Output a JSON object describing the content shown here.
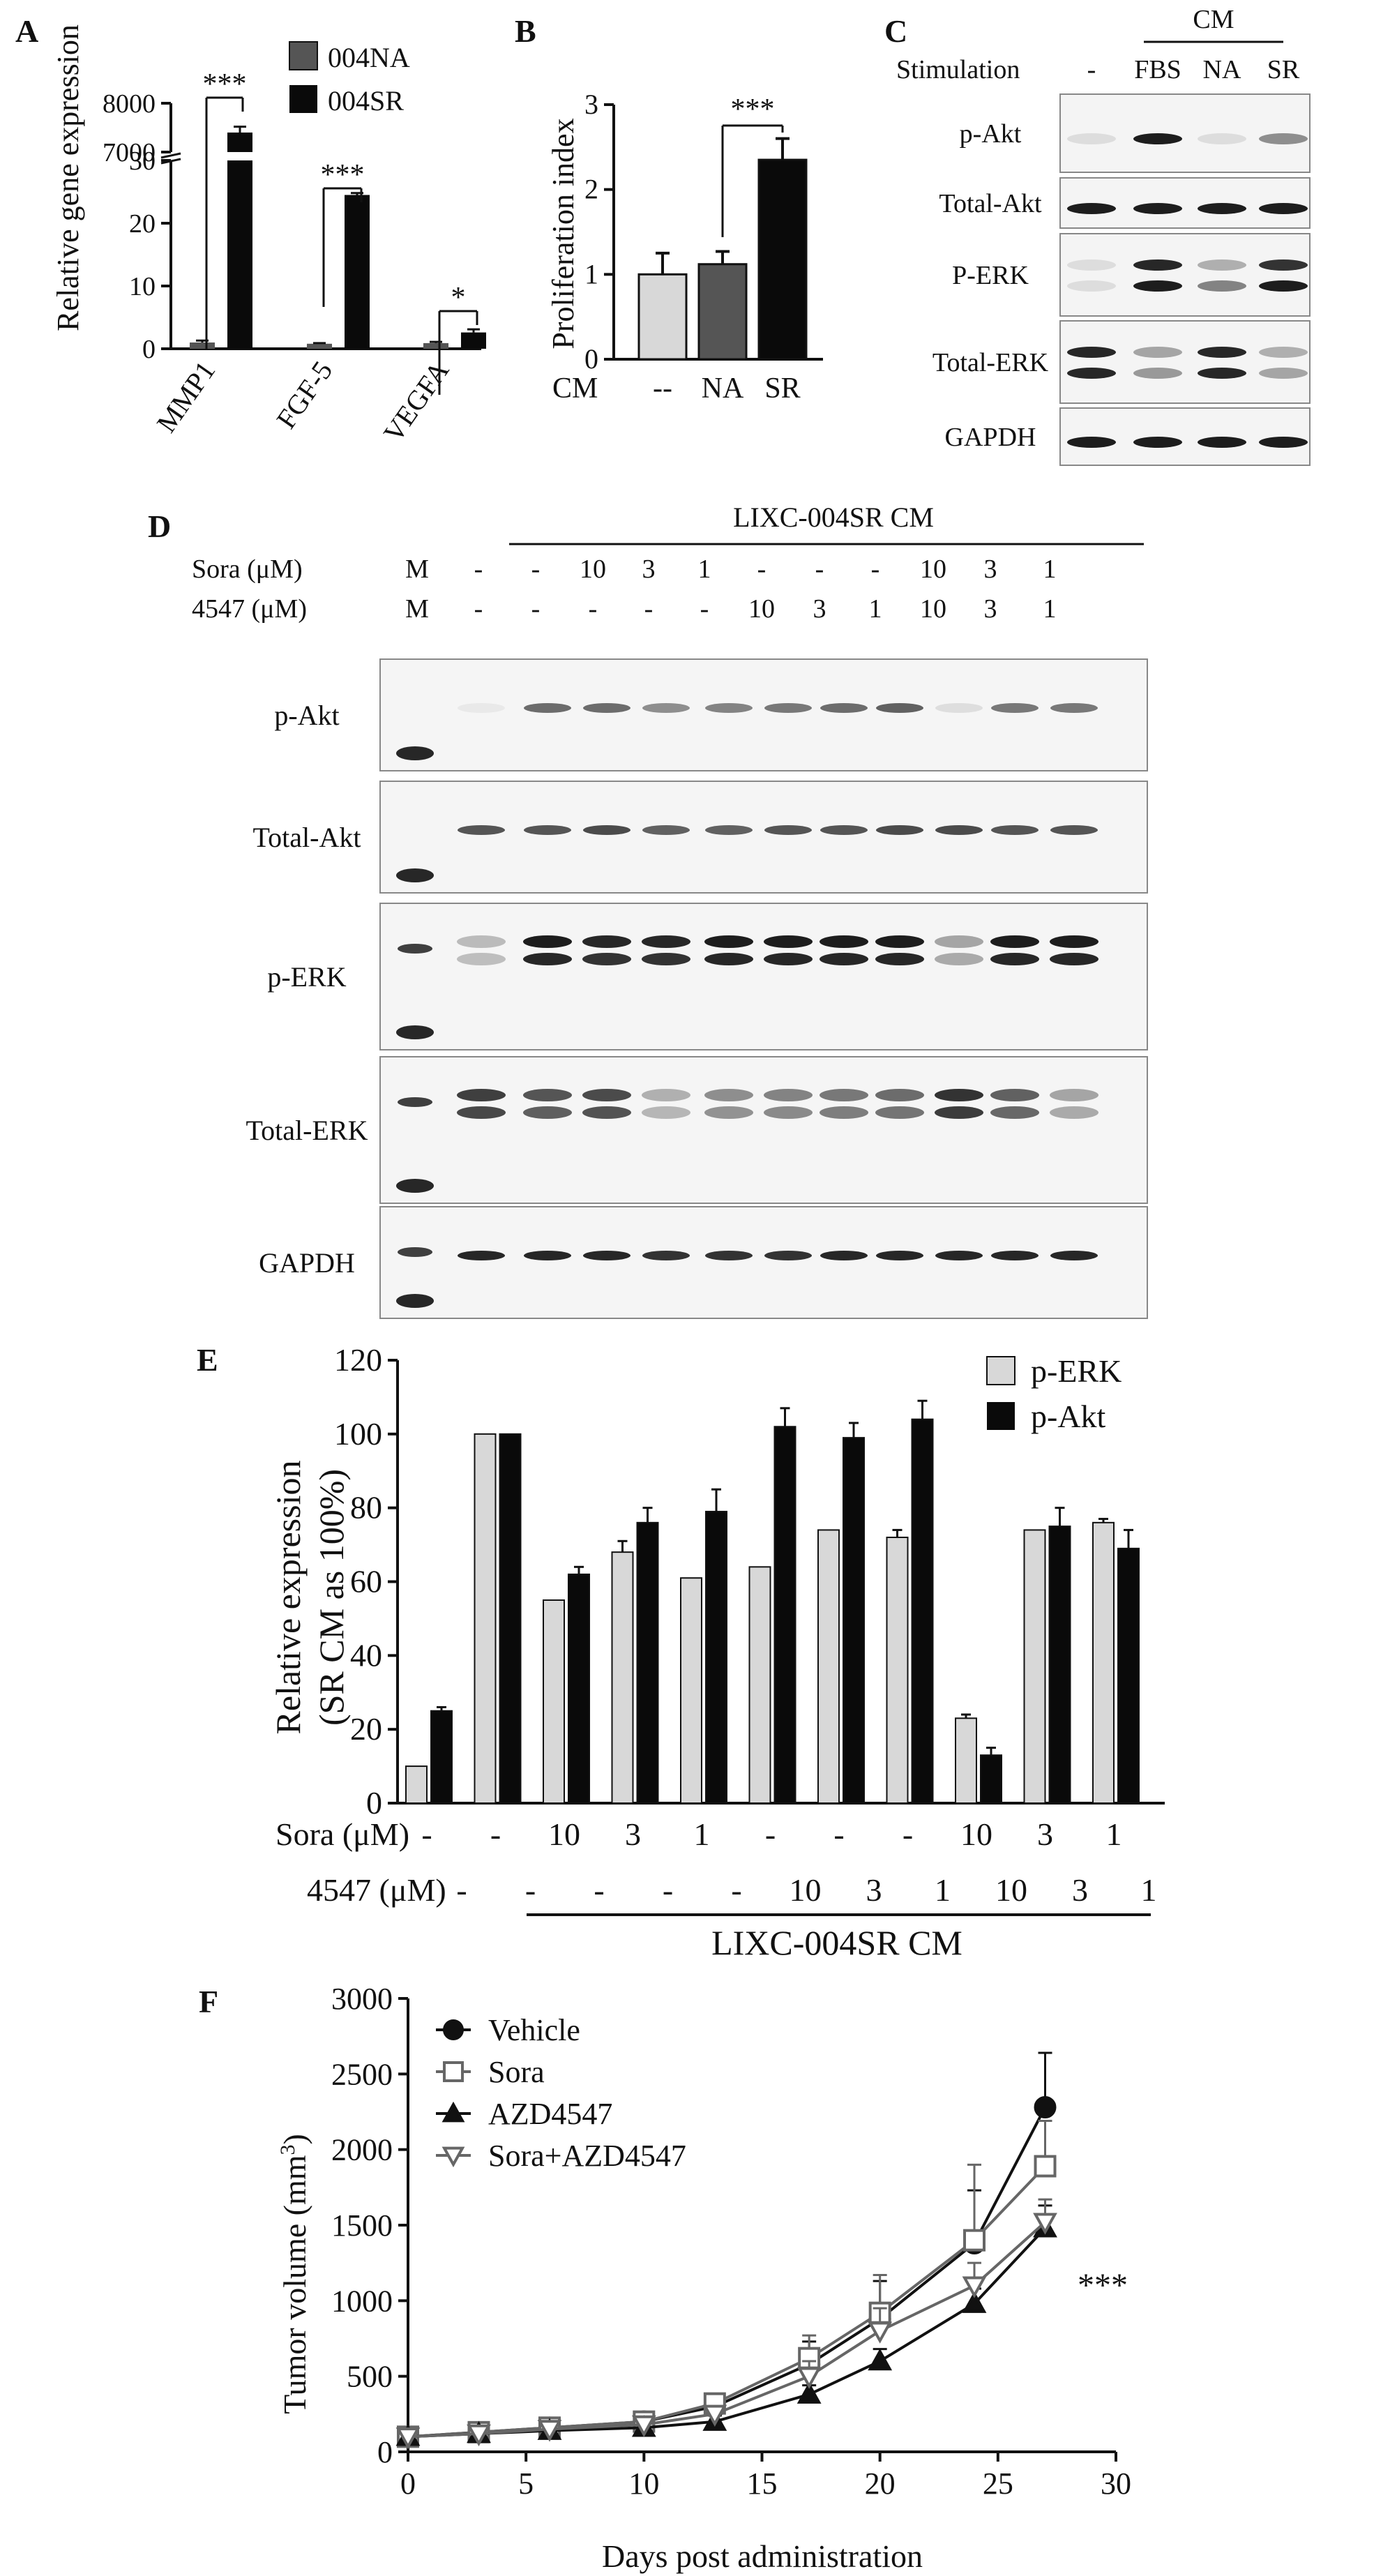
{
  "panel_letters": {
    "a": "A",
    "b": "B",
    "c": "C",
    "d": "D",
    "e": "E",
    "f": "F"
  },
  "chart_data": [
    {
      "panel": "A",
      "type": "bar",
      "ylabel": "Relative gene expression",
      "categories": [
        "MMP1",
        "FGF-5",
        "VEGFA"
      ],
      "series": [
        {
          "name": "004NA",
          "values": [
            1,
            0.8,
            0.9
          ],
          "errors": [
            0.3,
            0.1,
            0.2
          ],
          "color": "#555555"
        },
        {
          "name": "004SR",
          "values": [
            7400,
            24.5,
            2.6
          ],
          "errors": [
            120,
            0.3,
            0.5
          ],
          "color": "#0a0a0a"
        }
      ],
      "axis_break": {
        "lower": [
          0,
          30
        ],
        "upper": [
          7000,
          8000
        ]
      },
      "y_ticks_lower": [
        0,
        10,
        20,
        30
      ],
      "y_ticks_upper": [
        7000,
        8000
      ],
      "significance": [
        "***",
        "***",
        "*"
      ]
    },
    {
      "panel": "B",
      "type": "bar",
      "ylabel": "Proliferation index",
      "xprefix": "CM",
      "categories": [
        "--",
        "NA",
        "SR"
      ],
      "values": [
        1.0,
        1.12,
        2.35
      ],
      "errors": [
        0.25,
        0.15,
        0.25
      ],
      "colors": [
        "#d8d8d8",
        "#555555",
        "#0a0a0a"
      ],
      "ylim": [
        0,
        3
      ],
      "y_ticks": [
        0,
        1,
        2,
        3
      ],
      "significance": "***"
    },
    {
      "panel": "E",
      "type": "bar",
      "ylabel": "Relative expression",
      "ylabel2": "(SR CM as 100%)",
      "ylim": [
        0,
        120
      ],
      "y_ticks": [
        0,
        20,
        40,
        60,
        80,
        100,
        120
      ],
      "series": [
        {
          "name": "p-ERK",
          "color": "#d8d8d8",
          "values": [
            10,
            100,
            55,
            68,
            61,
            64,
            74,
            72,
            23,
            74,
            76
          ],
          "errors": [
            0,
            0,
            0,
            3,
            0,
            0,
            0,
            2,
            1,
            0,
            1
          ]
        },
        {
          "name": "p-Akt",
          "color": "#0a0a0a",
          "values": [
            25,
            100,
            62,
            76,
            79,
            102,
            99,
            104,
            13,
            75,
            69
          ],
          "errors": [
            1,
            0,
            2,
            4,
            6,
            5,
            4,
            5,
            2,
            5,
            5
          ]
        }
      ],
      "row_sora_label": "Sora (μM)",
      "row_sora": [
        "-",
        "-",
        "10",
        "3",
        "1",
        "-",
        "-",
        "-",
        "10",
        "3",
        "1"
      ],
      "row_4547_label": "4547 (μM)",
      "row_4547": [
        "-",
        "-",
        "-",
        "-",
        "-",
        "10",
        "3",
        "1",
        "10",
        "3",
        "1"
      ],
      "group_label": "LIXC-004SR CM"
    },
    {
      "panel": "F",
      "type": "line",
      "xlabel": "Days post administration",
      "ylabel": "Tumor volume (mm",
      "ylabel_sup": "3",
      "ylabel_close": ")",
      "xlim": [
        0,
        30
      ],
      "ylim": [
        0,
        3000
      ],
      "x_ticks": [
        0,
        5,
        10,
        15,
        20,
        25,
        30
      ],
      "y_ticks": [
        0,
        500,
        1000,
        1500,
        2000,
        2500,
        3000
      ],
      "x": [
        0,
        3,
        6,
        10,
        13,
        17,
        20,
        24,
        27
      ],
      "series": [
        {
          "name": "Vehicle",
          "marker": "filled-circle",
          "values": [
            100,
            130,
            160,
            200,
            300,
            580,
            880,
            1380,
            2280
          ],
          "errors": [
            20,
            20,
            30,
            40,
            60,
            150,
            250,
            350,
            360
          ]
        },
        {
          "name": "Sora",
          "marker": "open-square",
          "values": [
            100,
            130,
            160,
            200,
            320,
            620,
            920,
            1400,
            1890
          ],
          "errors": [
            20,
            20,
            30,
            40,
            60,
            150,
            250,
            500,
            300
          ]
        },
        {
          "name": "AZD4547",
          "marker": "filled-triangle",
          "values": [
            100,
            120,
            140,
            160,
            200,
            380,
            600,
            980,
            1480
          ],
          "errors": [
            20,
            20,
            20,
            30,
            40,
            60,
            80,
            100,
            150
          ]
        },
        {
          "name": "Sora+AZD4547",
          "marker": "open-triangle-down",
          "values": [
            100,
            120,
            150,
            180,
            250,
            500,
            800,
            1100,
            1520
          ],
          "errors": [
            20,
            20,
            20,
            30,
            50,
            100,
            150,
            150,
            150
          ]
        }
      ],
      "significance": "***"
    }
  ],
  "panel_c": {
    "stimulation_label": "Stimulation",
    "cm_label": "CM",
    "lanes": [
      "-",
      "FBS",
      "NA",
      "SR"
    ],
    "blots": [
      "p-Akt",
      "Total-Akt",
      "P-ERK",
      "Total-ERK",
      "GAPDH"
    ]
  },
  "panel_d": {
    "group_label": "LIXC-004SR CM",
    "sora_label": "Sora (μM)",
    "r4547_label": "4547 (μM)",
    "sora": [
      "M",
      "-",
      "-",
      "10",
      "3",
      "1",
      "-",
      "-",
      "-",
      "10",
      "3",
      "1"
    ],
    "r4547": [
      "M",
      "-",
      "-",
      "-",
      "-",
      "-",
      "10",
      "3",
      "1",
      "10",
      "3",
      "1"
    ],
    "blots": [
      "p-Akt",
      "Total-Akt",
      "p-ERK",
      "Total-ERK",
      "GAPDH"
    ]
  }
}
